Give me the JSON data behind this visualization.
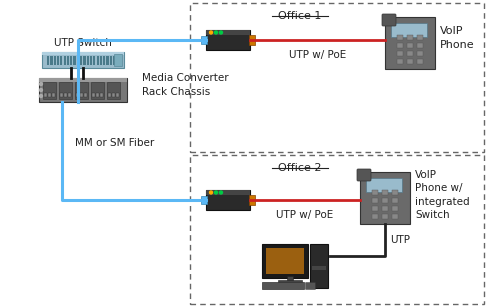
{
  "fig_width": 4.87,
  "fig_height": 3.08,
  "dpi": 100,
  "bg_color": "#ffffff",
  "office1_label": "Office 1",
  "office2_label": "Office 2",
  "utp_switch_label": "UTP Switch",
  "media_converter_label": "Media Converter\nRack Chassis",
  "mm_sm_fiber_label": "MM or SM Fiber",
  "utp_poe_label1": "UTP w/ PoE",
  "utp_poe_label2": "UTP w/ PoE",
  "utp_label": "UTP",
  "voip_label1": "VoIP\nPhone",
  "voip_label2": "VoIP\nPhone w/\nintegrated\nSwitch",
  "fiber_color": "#5bb8f5",
  "utp_poe_color": "#cc2222",
  "box_dash_color": "#666666",
  "text_color": "#222222"
}
